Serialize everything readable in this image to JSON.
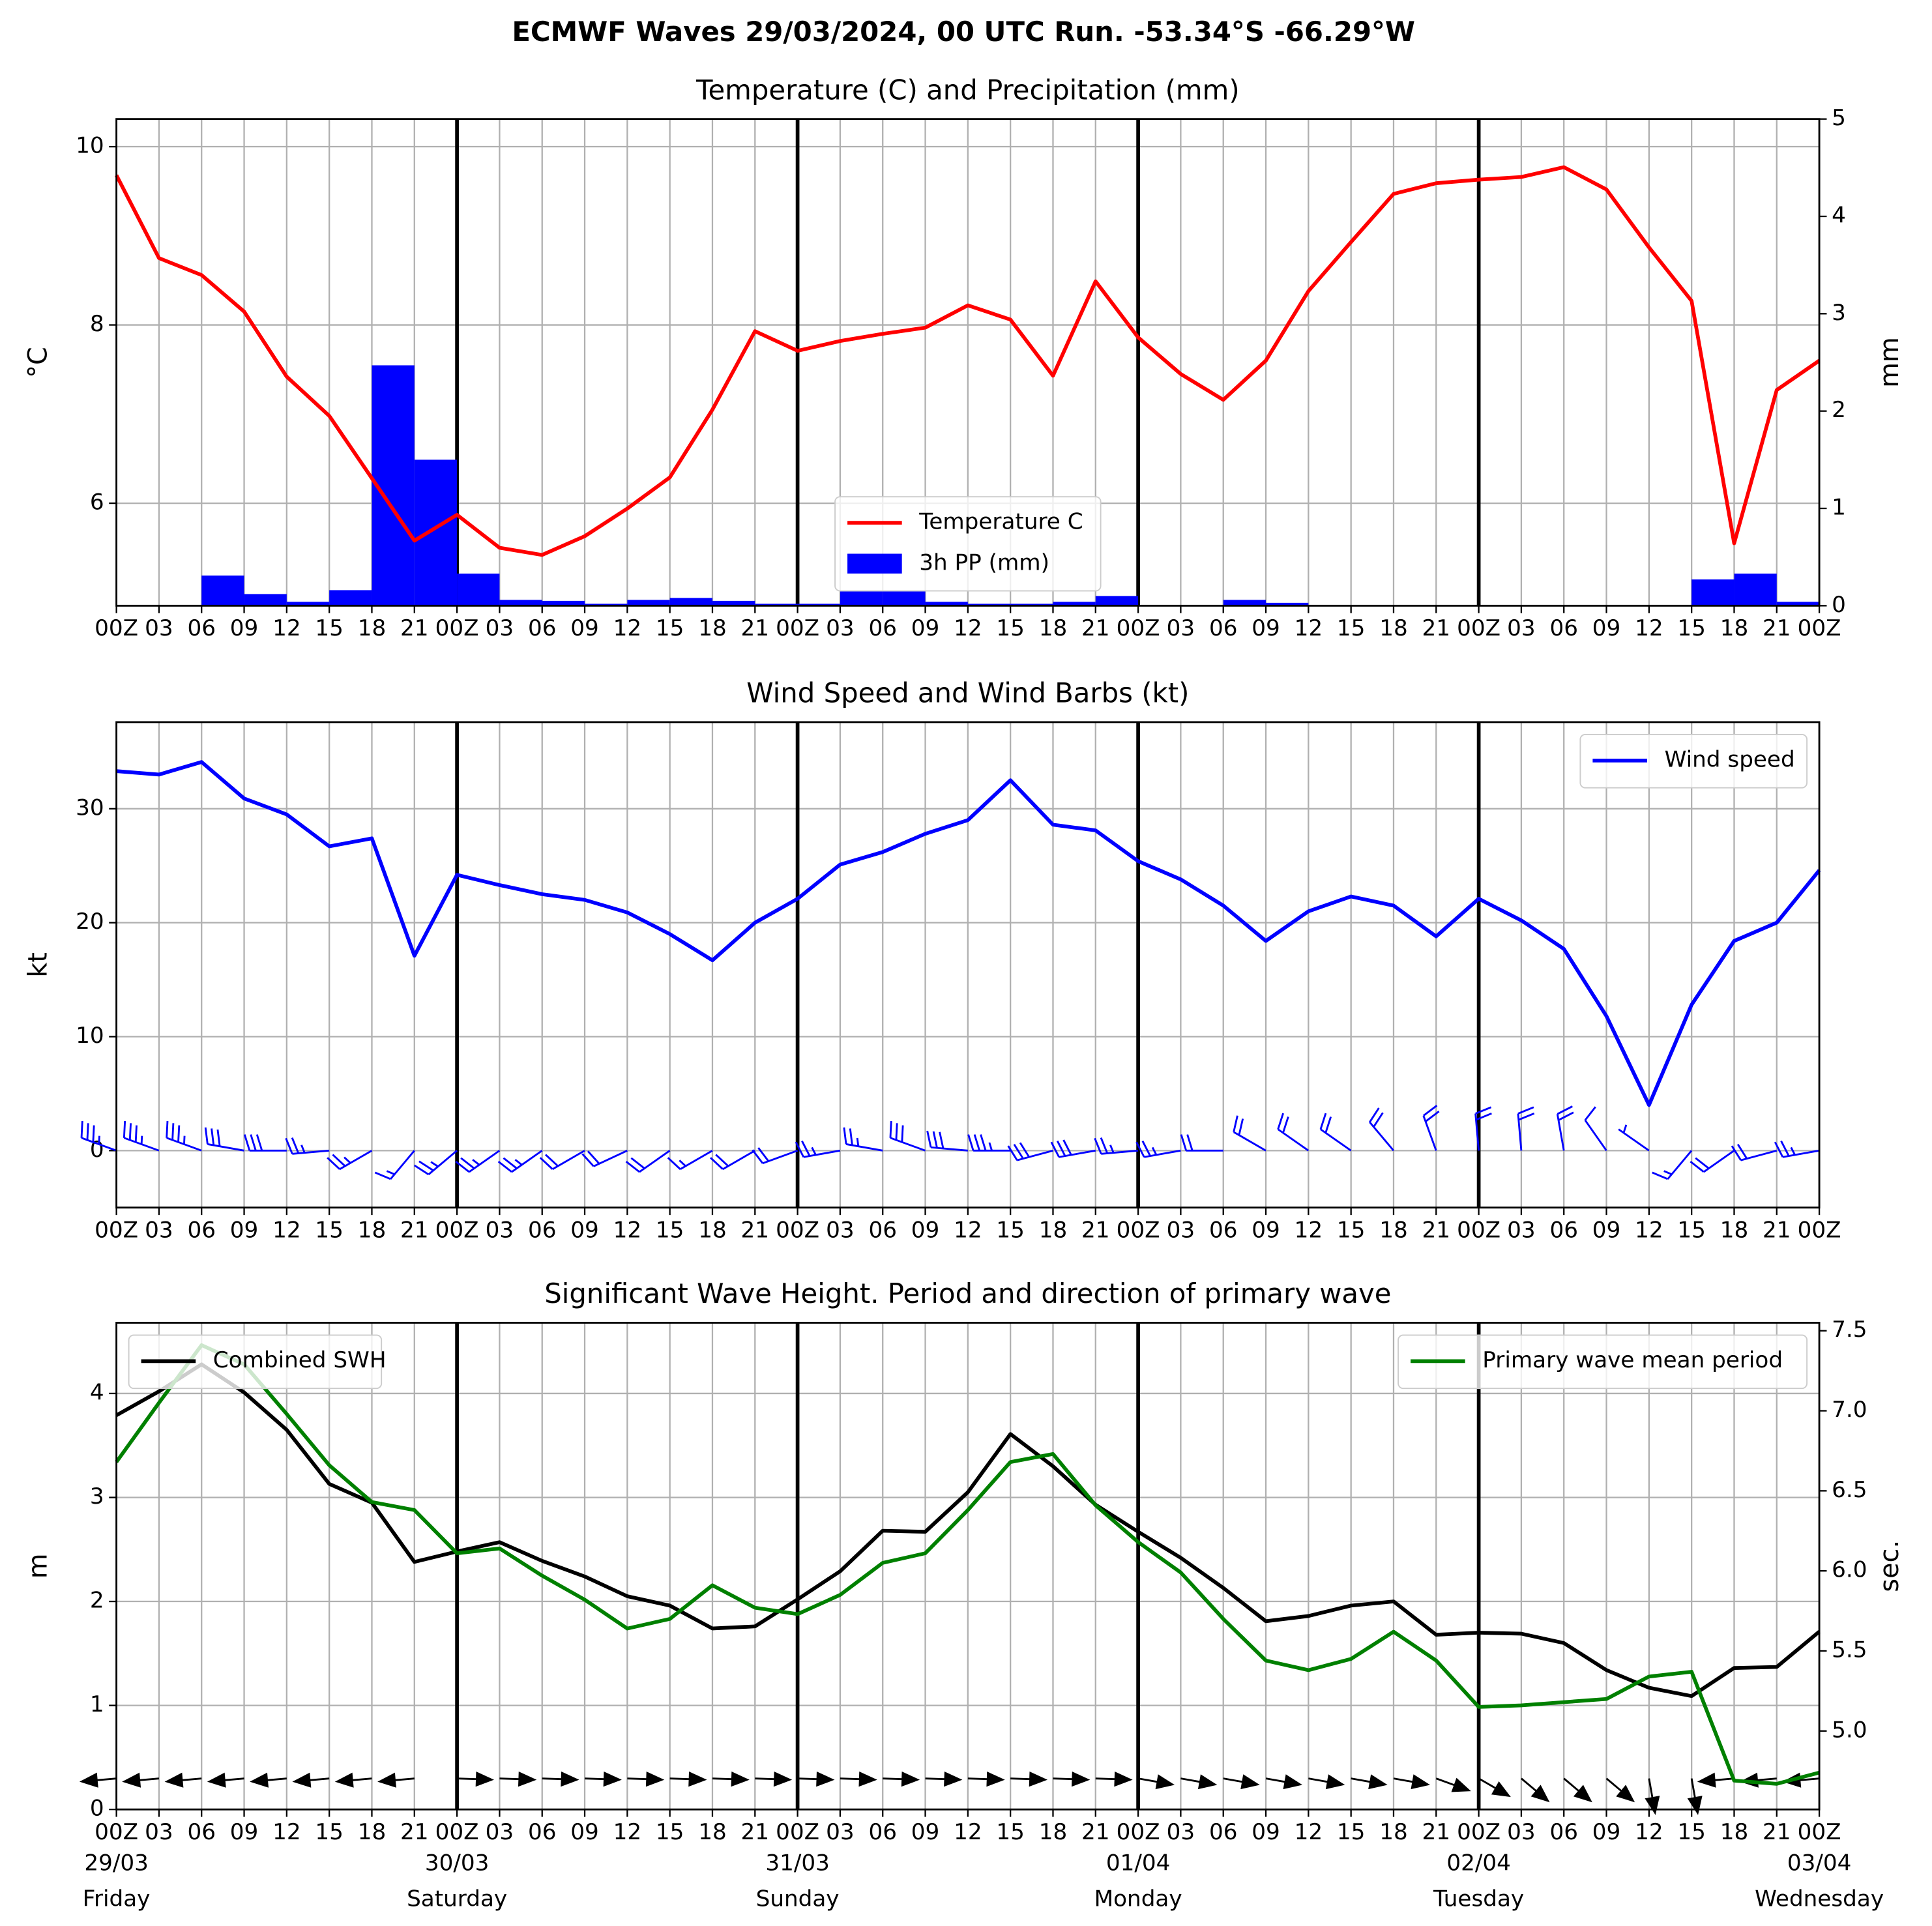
{
  "title": "ECMWF Waves 29/03/2024, 00 UTC Run. -53.34°S -66.29°W",
  "chart_data": [
    {
      "type": "line",
      "title": "Temperature (C) and Precipitation (mm)",
      "ylabel": "°C",
      "y2label": "mm",
      "categories": [
        "00Z",
        "03",
        "06",
        "09",
        "12",
        "15",
        "18",
        "21",
        "00Z",
        "03",
        "06",
        "09",
        "12",
        "15",
        "18",
        "21",
        "00Z",
        "03",
        "06",
        "09",
        "12",
        "15",
        "18",
        "21",
        "00Z",
        "03",
        "06",
        "09",
        "12",
        "15",
        "18",
        "21",
        "00Z",
        "03",
        "06",
        "09",
        "12",
        "15",
        "18",
        "21",
        "00Z"
      ],
      "ylim": [
        4.85,
        10.31
      ],
      "yticks": [
        6,
        8,
        10
      ],
      "y2lim": [
        0,
        5
      ],
      "y2ticks": [
        0,
        1,
        2,
        3,
        4,
        5
      ],
      "grid": true,
      "legend": "lower center",
      "series": [
        {
          "name": "Temperature C",
          "color": "#ff0000",
          "values": [
            9.68,
            8.75,
            8.56,
            8.15,
            7.42,
            6.98,
            6.28,
            5.58,
            5.87,
            5.5,
            5.42,
            5.63,
            5.94,
            6.29,
            7.05,
            7.93,
            7.71,
            7.82,
            7.9,
            7.97,
            8.22,
            8.06,
            7.43,
            8.49,
            7.86,
            7.45,
            7.16,
            7.6,
            8.38,
            8.93,
            9.47,
            9.59,
            9.63,
            9.66,
            9.77,
            9.52,
            8.87,
            8.27,
            5.55,
            7.27,
            7.6
          ]
        },
        {
          "name": "3h PP (mm)",
          "color": "#0000ff",
          "type": "bar",
          "axis": "y2",
          "values": [
            null,
            0,
            0,
            0.31,
            0.12,
            0.04,
            0.16,
            2.47,
            1.5,
            0.33,
            0.06,
            0.05,
            0.02,
            0.06,
            0.08,
            0.05,
            0.02,
            0.02,
            0.15,
            0.15,
            0.04,
            0.02,
            0.02,
            0.04,
            0.1,
            0,
            0,
            0.06,
            0.03,
            0,
            0,
            0,
            0,
            0,
            0,
            0,
            0,
            0,
            0.27,
            0.33,
            0.04
          ]
        }
      ]
    },
    {
      "type": "line",
      "title": "Wind Speed and Wind Barbs (kt)",
      "ylabel": "kt",
      "categories": [
        "00Z",
        "03",
        "06",
        "09",
        "12",
        "15",
        "18",
        "21",
        "00Z",
        "03",
        "06",
        "09",
        "12",
        "15",
        "18",
        "21",
        "00Z",
        "03",
        "06",
        "09",
        "12",
        "15",
        "18",
        "21",
        "00Z",
        "03",
        "06",
        "09",
        "12",
        "15",
        "18",
        "21",
        "00Z",
        "03",
        "06",
        "09",
        "12",
        "15",
        "18",
        "21",
        "00Z"
      ],
      "ylim": [
        -5,
        37.6
      ],
      "yticks": [
        0,
        10,
        20,
        30
      ],
      "grid": true,
      "legend": "upper right",
      "series": [
        {
          "name": "Wind speed",
          "color": "#0000ff",
          "values": [
            33.3,
            33.0,
            34.1,
            30.9,
            29.5,
            26.7,
            27.4,
            17.1,
            24.2,
            23.3,
            22.5,
            22.0,
            20.9,
            19.0,
            16.7,
            20.0,
            22.1,
            25.1,
            26.2,
            27.8,
            29.0,
            32.5,
            28.6,
            28.1,
            25.4,
            23.8,
            21.5,
            18.4,
            21.0,
            22.3,
            21.5,
            18.8,
            22.1,
            20.2,
            17.7,
            11.8,
            4.0,
            12.8,
            18.4,
            20.0,
            24.6
          ]
        }
      ],
      "barbs": {
        "color": "#0000ff",
        "direction": [
          290,
          290,
          290,
          280,
          270,
          265,
          240,
          220,
          230,
          235,
          235,
          240,
          245,
          235,
          240,
          240,
          250,
          260,
          280,
          290,
          275,
          270,
          255,
          260,
          265,
          260,
          270,
          300,
          305,
          305,
          320,
          340,
          355,
          355,
          350,
          325,
          305,
          220,
          235,
          255,
          260
        ]
      }
    },
    {
      "type": "line",
      "title": "Significant Wave Height. Period and direction of primary wave",
      "ylabel": "m",
      "y2label": "sec.",
      "y2label_color": "#008000",
      "categories": [
        "00Z",
        "03",
        "06",
        "09",
        "12",
        "15",
        "18",
        "21",
        "00Z",
        "03",
        "06",
        "09",
        "12",
        "15",
        "18",
        "21",
        "00Z",
        "03",
        "06",
        "09",
        "12",
        "15",
        "18",
        "21",
        "00Z",
        "03",
        "06",
        "09",
        "12",
        "15",
        "18",
        "21",
        "00Z",
        "03",
        "06",
        "09",
        "12",
        "15",
        "18",
        "21",
        "00Z"
      ],
      "dates": [
        "29/03",
        "30/03",
        "31/03",
        "01/04",
        "02/04",
        "03/04"
      ],
      "days": [
        "Friday",
        "Saturday",
        "Sunday",
        "Monday",
        "Tuesday",
        "Wednesday"
      ],
      "ylim": [
        0,
        4.68
      ],
      "yticks": [
        0,
        1,
        2,
        3,
        4
      ],
      "y2lim": [
        4.51,
        7.55
      ],
      "y2ticks": [
        {
          "value": 5.0,
          "label": "5.0"
        },
        5.5,
        {
          "value": 6.0,
          "label": "6.0"
        },
        6.5,
        {
          "value": 7.0,
          "label": "7.0"
        },
        7.5
      ],
      "grid": true,
      "series": [
        {
          "name": "Combined SWH",
          "color": "#000000",
          "legend": "upper left",
          "values": [
            3.79,
            4.02,
            4.28,
            4.01,
            3.65,
            3.13,
            2.95,
            2.38,
            2.48,
            2.57,
            2.39,
            2.24,
            2.05,
            1.96,
            1.74,
            1.76,
            2.02,
            2.29,
            2.68,
            2.67,
            3.05,
            3.61,
            3.3,
            2.93,
            2.67,
            2.42,
            2.13,
            1.81,
            1.86,
            1.96,
            2.0,
            1.68,
            1.7,
            1.69,
            1.6,
            1.34,
            1.17,
            1.09,
            1.36,
            1.37,
            1.71
          ]
        },
        {
          "name": "Primary wave mean period",
          "color": "#008000",
          "axis": "y2",
          "legend": "upper right",
          "values": [
            6.68,
            7.05,
            7.41,
            7.29,
            6.98,
            6.66,
            6.43,
            6.38,
            6.11,
            6.14,
            5.97,
            5.82,
            5.64,
            5.7,
            5.91,
            5.77,
            5.73,
            5.85,
            6.05,
            6.11,
            6.38,
            6.68,
            6.73,
            6.41,
            6.18,
            5.99,
            5.7,
            5.44,
            5.38,
            5.45,
            5.62,
            5.44,
            5.15,
            5.16,
            5.18,
            5.2,
            5.34,
            5.37,
            4.69,
            4.67,
            4.74
          ]
        }
      ],
      "arrows": {
        "color": "#000000",
        "direction": [
          265,
          265,
          265,
          265,
          265,
          265,
          265,
          265,
          92,
          92,
          92,
          92,
          92,
          92,
          92,
          92,
          92,
          92,
          92,
          92,
          92,
          92,
          92,
          92,
          100,
          100,
          100,
          100,
          100,
          100,
          100,
          110,
          120,
          130,
          130,
          130,
          170,
          170,
          265,
          265,
          265
        ]
      }
    }
  ]
}
